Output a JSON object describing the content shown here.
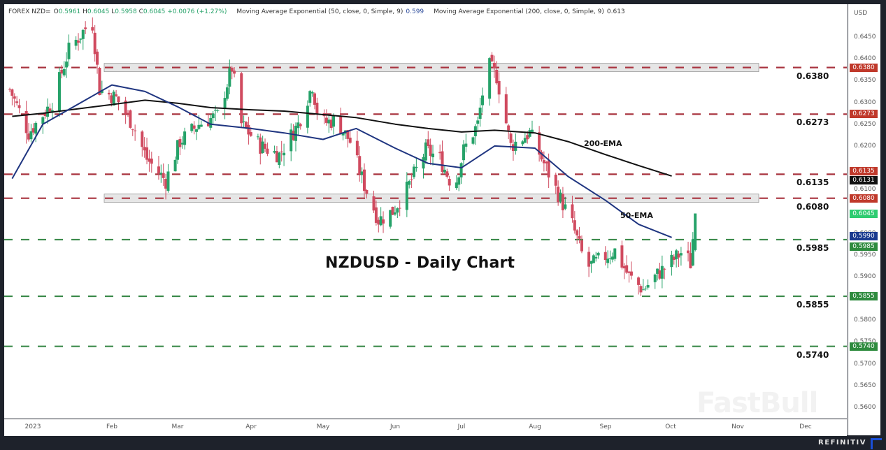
{
  "legend": {
    "symbol": "FOREX NZD=",
    "open_label": "O",
    "open": "0.5961",
    "high_label": "H",
    "high": "0.6045",
    "low_label": "L",
    "low": "0.5958",
    "close_label": "C",
    "close": "0.6045",
    "change": "+0.0076 (+1.27%)",
    "ema50_name": "Moving Average Exponential (50, close, 0, Simple, 9)",
    "ema50_value": "0.599",
    "ema200_name": "Moving Average Exponential (200, close, 0, Simple, 9)",
    "ema200_value": "0.613"
  },
  "price_axis": {
    "unit": "USD",
    "ticks": [
      "0.6450",
      "0.6400",
      "0.6350",
      "0.6300",
      "0.6250",
      "0.6200",
      "0.6100",
      "0.6000",
      "0.5950",
      "0.5900",
      "0.5800",
      "0.5750",
      "0.5700",
      "0.5650",
      "0.5600"
    ],
    "tags": [
      {
        "value": "0.6380",
        "color": "#c0392b"
      },
      {
        "value": "0.6273",
        "color": "#c0392b"
      },
      {
        "value": "0.6135",
        "color": "#c0392b"
      },
      {
        "value": "0.6131",
        "color": "#111111"
      },
      {
        "value": "0.6080",
        "color": "#c0392b"
      },
      {
        "value": "0.6045",
        "color": "#2ecc71"
      },
      {
        "value": "0.5990",
        "color": "#1a3a8f"
      },
      {
        "value": "0.5985",
        "color": "#2e8b3e"
      },
      {
        "value": "0.5855",
        "color": "#2e8b3e"
      },
      {
        "value": "0.5740",
        "color": "#2e8b3e"
      }
    ]
  },
  "time_axis": {
    "labels": [
      "2023",
      "Feb",
      "Mar",
      "Apr",
      "May",
      "Jun",
      "Jul",
      "Aug",
      "Sep",
      "Oct",
      "Nov",
      "Dec"
    ]
  },
  "annotations": {
    "title": "NZDUSD - Daily Chart",
    "ema200_label": "200-EMA",
    "ema50_label": "50-EMA",
    "levels": [
      "0.6380",
      "0.6273",
      "0.6135",
      "0.6080",
      "0.5985",
      "0.5855",
      "0.5740"
    ]
  },
  "watermark": "FastBull",
  "footer": {
    "brand": "REFINITIV"
  },
  "colors": {
    "up": "#26a269",
    "down": "#d04a5f",
    "resistance": "#a8333f",
    "support": "#3b8a4a",
    "ema50": "#1f3580",
    "ema200": "#111111",
    "zone": "#e6e6e6"
  },
  "chart_data": {
    "type": "candlestick",
    "title": "NZDUSD - Daily Chart",
    "symbol": "FOREX NZD=",
    "xlabel": "",
    "ylabel": "USD",
    "ylim": [
      0.5575,
      0.652
    ],
    "x_ticks": [
      "2023",
      "Feb",
      "Mar",
      "Apr",
      "May",
      "Jun",
      "Jul",
      "Aug",
      "Sep",
      "Oct",
      "Nov",
      "Dec"
    ],
    "last_ohlc": {
      "open": 0.5961,
      "high": 0.6045,
      "low": 0.5958,
      "close": 0.6045,
      "change": 0.0076,
      "change_pct": 1.27
    },
    "horizontal_levels": [
      {
        "value": 0.638,
        "type": "resistance",
        "zone": true
      },
      {
        "value": 0.6273,
        "type": "resistance"
      },
      {
        "value": 0.6135,
        "type": "resistance"
      },
      {
        "value": 0.608,
        "type": "resistance",
        "zone": true
      },
      {
        "value": 0.5985,
        "type": "support"
      },
      {
        "value": 0.5855,
        "type": "support"
      },
      {
        "value": 0.574,
        "type": "support"
      }
    ],
    "series": [
      {
        "name": "EMA 50",
        "last": 0.599,
        "x": [
          "Jan-02",
          "Jan-15",
          "Feb-01",
          "Feb-15",
          "Mar-01",
          "Mar-15",
          "Apr-01",
          "Apr-15",
          "May-01",
          "May-15",
          "Jun-01",
          "Jun-15",
          "Jul-01",
          "Jul-15",
          "Aug-01",
          "Aug-15",
          "Sep-01",
          "Sep-15",
          "Sep-29"
        ],
        "values": [
          0.6125,
          0.625,
          0.634,
          0.6325,
          0.629,
          0.625,
          0.624,
          0.623,
          0.6215,
          0.624,
          0.6195,
          0.616,
          0.615,
          0.62,
          0.6195,
          0.613,
          0.6075,
          0.602,
          0.599
        ]
      },
      {
        "name": "EMA 200",
        "last": 0.6131,
        "x": [
          "Jan-02",
          "Jan-15",
          "Feb-01",
          "Feb-15",
          "Mar-01",
          "Mar-15",
          "Apr-01",
          "Apr-15",
          "May-01",
          "May-15",
          "Jun-01",
          "Jun-15",
          "Jul-01",
          "Jul-15",
          "Aug-01",
          "Aug-15",
          "Sep-01",
          "Sep-15",
          "Sep-29"
        ],
        "values": [
          0.6268,
          0.6275,
          0.6295,
          0.6305,
          0.6298,
          0.6288,
          0.6283,
          0.628,
          0.6272,
          0.6265,
          0.625,
          0.624,
          0.6232,
          0.6236,
          0.623,
          0.621,
          0.618,
          0.6155,
          0.6131
        ]
      }
    ],
    "monthly_range": [
      {
        "month": "Jan",
        "high": 0.652,
        "low": 0.619
      },
      {
        "month": "Feb",
        "high": 0.638,
        "low": 0.615
      },
      {
        "month": "Mar",
        "high": 0.63,
        "low": 0.6085
      },
      {
        "month": "Apr",
        "high": 0.638,
        "low": 0.616
      },
      {
        "month": "May",
        "high": 0.6385,
        "low": 0.5985
      },
      {
        "month": "Jun",
        "high": 0.624,
        "low": 0.5985
      },
      {
        "month": "Jul",
        "high": 0.641,
        "low": 0.611
      },
      {
        "month": "Aug",
        "high": 0.6215,
        "low": 0.589
      },
      {
        "month": "Sep",
        "high": 0.6045,
        "low": 0.586
      }
    ]
  }
}
